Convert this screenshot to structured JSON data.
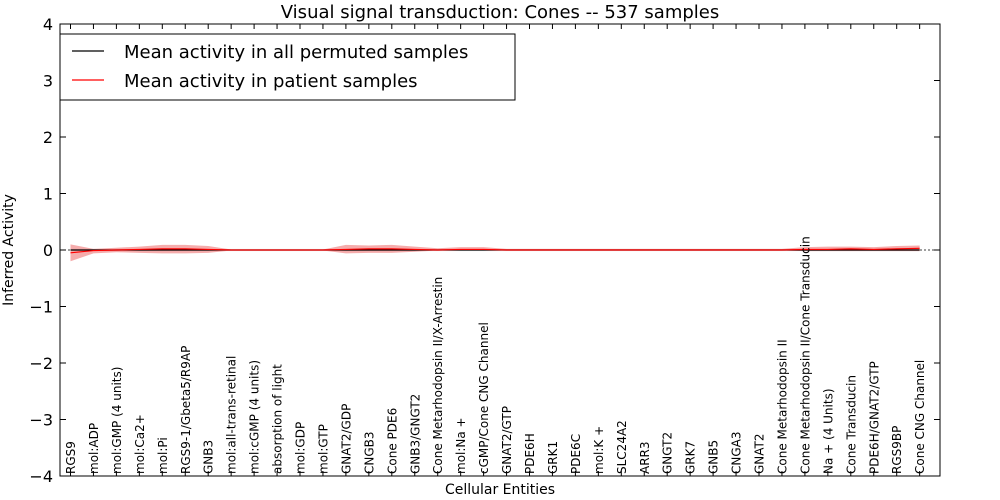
{
  "chart_data": {
    "type": "line",
    "title": "Visual signal transduction: Cones -- 537 samples",
    "xlabel": "Cellular Entities",
    "ylabel": "Inferred Activity",
    "ylim": [
      -4,
      4
    ],
    "yticks": [
      "−4",
      "−3",
      "−2",
      "−1",
      "0",
      "1",
      "2",
      "3",
      "4"
    ],
    "grid": false,
    "legend_position": "top-left",
    "categories": [
      "RGS9",
      "mol:ADP",
      "mol:GMP (4 units)",
      "mol:Ca2+",
      "mol:Pi",
      "RGS9-1/Gbeta5/R9AP",
      "GNB3",
      "mol:all-trans-retinal",
      "mol:cGMP (4 units)",
      "absorption of light",
      "mol:GDP",
      "mol:GTP",
      "GNAT2/GDP",
      "CNGB3",
      "Cone PDE6",
      "GNB3/GNGT2",
      "Cone Metarhodopsin II/X-Arrestin",
      "mol:Na +",
      "cGMP/Cone CNG Channel",
      "GNAT2/GTP",
      "PDE6H",
      "GRK1",
      "PDE6C",
      "mol:K +",
      "SLC24A2",
      "ARR3",
      "GNGT2",
      "GRK7",
      "GNB5",
      "CNGA3",
      "GNAT2",
      "Cone Metarhodopsin II",
      "Cone Metarhodopsin II/Cone Transducin",
      "Na + (4 Units)",
      "Cone Transducin",
      "PDE6H/GNAT2/GTP",
      "RGS9BP",
      "Cone CNG Channel"
    ],
    "series": [
      {
        "name": "Mean activity in all permuted samples",
        "color": "#000000",
        "values": [
          0.0,
          0.0,
          0.0,
          0.0,
          0.0,
          0.0,
          0.0,
          0.0,
          0.0,
          0.0,
          0.0,
          0.0,
          0.0,
          0.0,
          0.0,
          0.0,
          0.0,
          0.0,
          0.0,
          0.0,
          0.0,
          0.0,
          0.0,
          0.0,
          0.0,
          0.0,
          0.0,
          0.0,
          0.0,
          0.0,
          0.0,
          0.0,
          0.0,
          0.0,
          0.0,
          0.0,
          0.0,
          0.0
        ],
        "band_low": [
          -0.02,
          -0.02,
          -0.02,
          -0.02,
          -0.02,
          -0.02,
          -0.02,
          -0.02,
          -0.02,
          -0.02,
          -0.02,
          -0.02,
          -0.02,
          -0.02,
          -0.02,
          -0.02,
          -0.02,
          -0.02,
          -0.02,
          -0.02,
          -0.02,
          -0.02,
          -0.02,
          -0.02,
          -0.02,
          -0.02,
          -0.02,
          -0.02,
          -0.02,
          -0.02,
          -0.02,
          -0.02,
          -0.02,
          -0.02,
          -0.02,
          -0.02,
          -0.02,
          -0.02
        ],
        "band_high": [
          0.02,
          0.02,
          0.02,
          0.02,
          0.02,
          0.02,
          0.02,
          0.02,
          0.02,
          0.02,
          0.02,
          0.02,
          0.02,
          0.02,
          0.02,
          0.02,
          0.02,
          0.02,
          0.02,
          0.02,
          0.02,
          0.02,
          0.02,
          0.02,
          0.02,
          0.02,
          0.02,
          0.02,
          0.02,
          0.02,
          0.02,
          0.02,
          0.02,
          0.02,
          0.02,
          0.02,
          0.02,
          0.02
        ]
      },
      {
        "name": "Mean activity in patient samples",
        "color": "#ff0000",
        "band_color": "#f08080",
        "values": [
          -0.05,
          -0.01,
          0.0,
          0.01,
          0.02,
          0.02,
          0.01,
          0.0,
          0.0,
          0.0,
          0.0,
          0.0,
          0.01,
          0.02,
          0.02,
          0.01,
          0.0,
          0.01,
          0.01,
          0.0,
          0.0,
          0.0,
          0.0,
          0.0,
          0.0,
          0.0,
          0.0,
          0.0,
          0.0,
          0.0,
          0.0,
          0.0,
          0.01,
          0.01,
          0.02,
          0.01,
          0.02,
          0.03
        ],
        "band_low": [
          -0.2,
          -0.06,
          -0.04,
          -0.05,
          -0.06,
          -0.06,
          -0.05,
          -0.01,
          -0.01,
          -0.01,
          -0.01,
          -0.01,
          -0.06,
          -0.05,
          -0.05,
          -0.03,
          -0.01,
          -0.01,
          -0.01,
          -0.01,
          -0.01,
          -0.01,
          -0.01,
          -0.01,
          -0.01,
          -0.01,
          -0.01,
          -0.01,
          -0.01,
          -0.01,
          -0.01,
          -0.01,
          -0.02,
          -0.02,
          -0.02,
          -0.02,
          -0.02,
          -0.02
        ],
        "band_high": [
          0.1,
          0.02,
          0.04,
          0.06,
          0.09,
          0.09,
          0.07,
          0.01,
          0.01,
          0.01,
          0.01,
          0.01,
          0.09,
          0.08,
          0.09,
          0.06,
          0.03,
          0.05,
          0.05,
          0.02,
          0.02,
          0.02,
          0.02,
          0.02,
          0.02,
          0.02,
          0.02,
          0.02,
          0.02,
          0.02,
          0.02,
          0.02,
          0.05,
          0.06,
          0.06,
          0.05,
          0.07,
          0.08
        ]
      }
    ]
  }
}
